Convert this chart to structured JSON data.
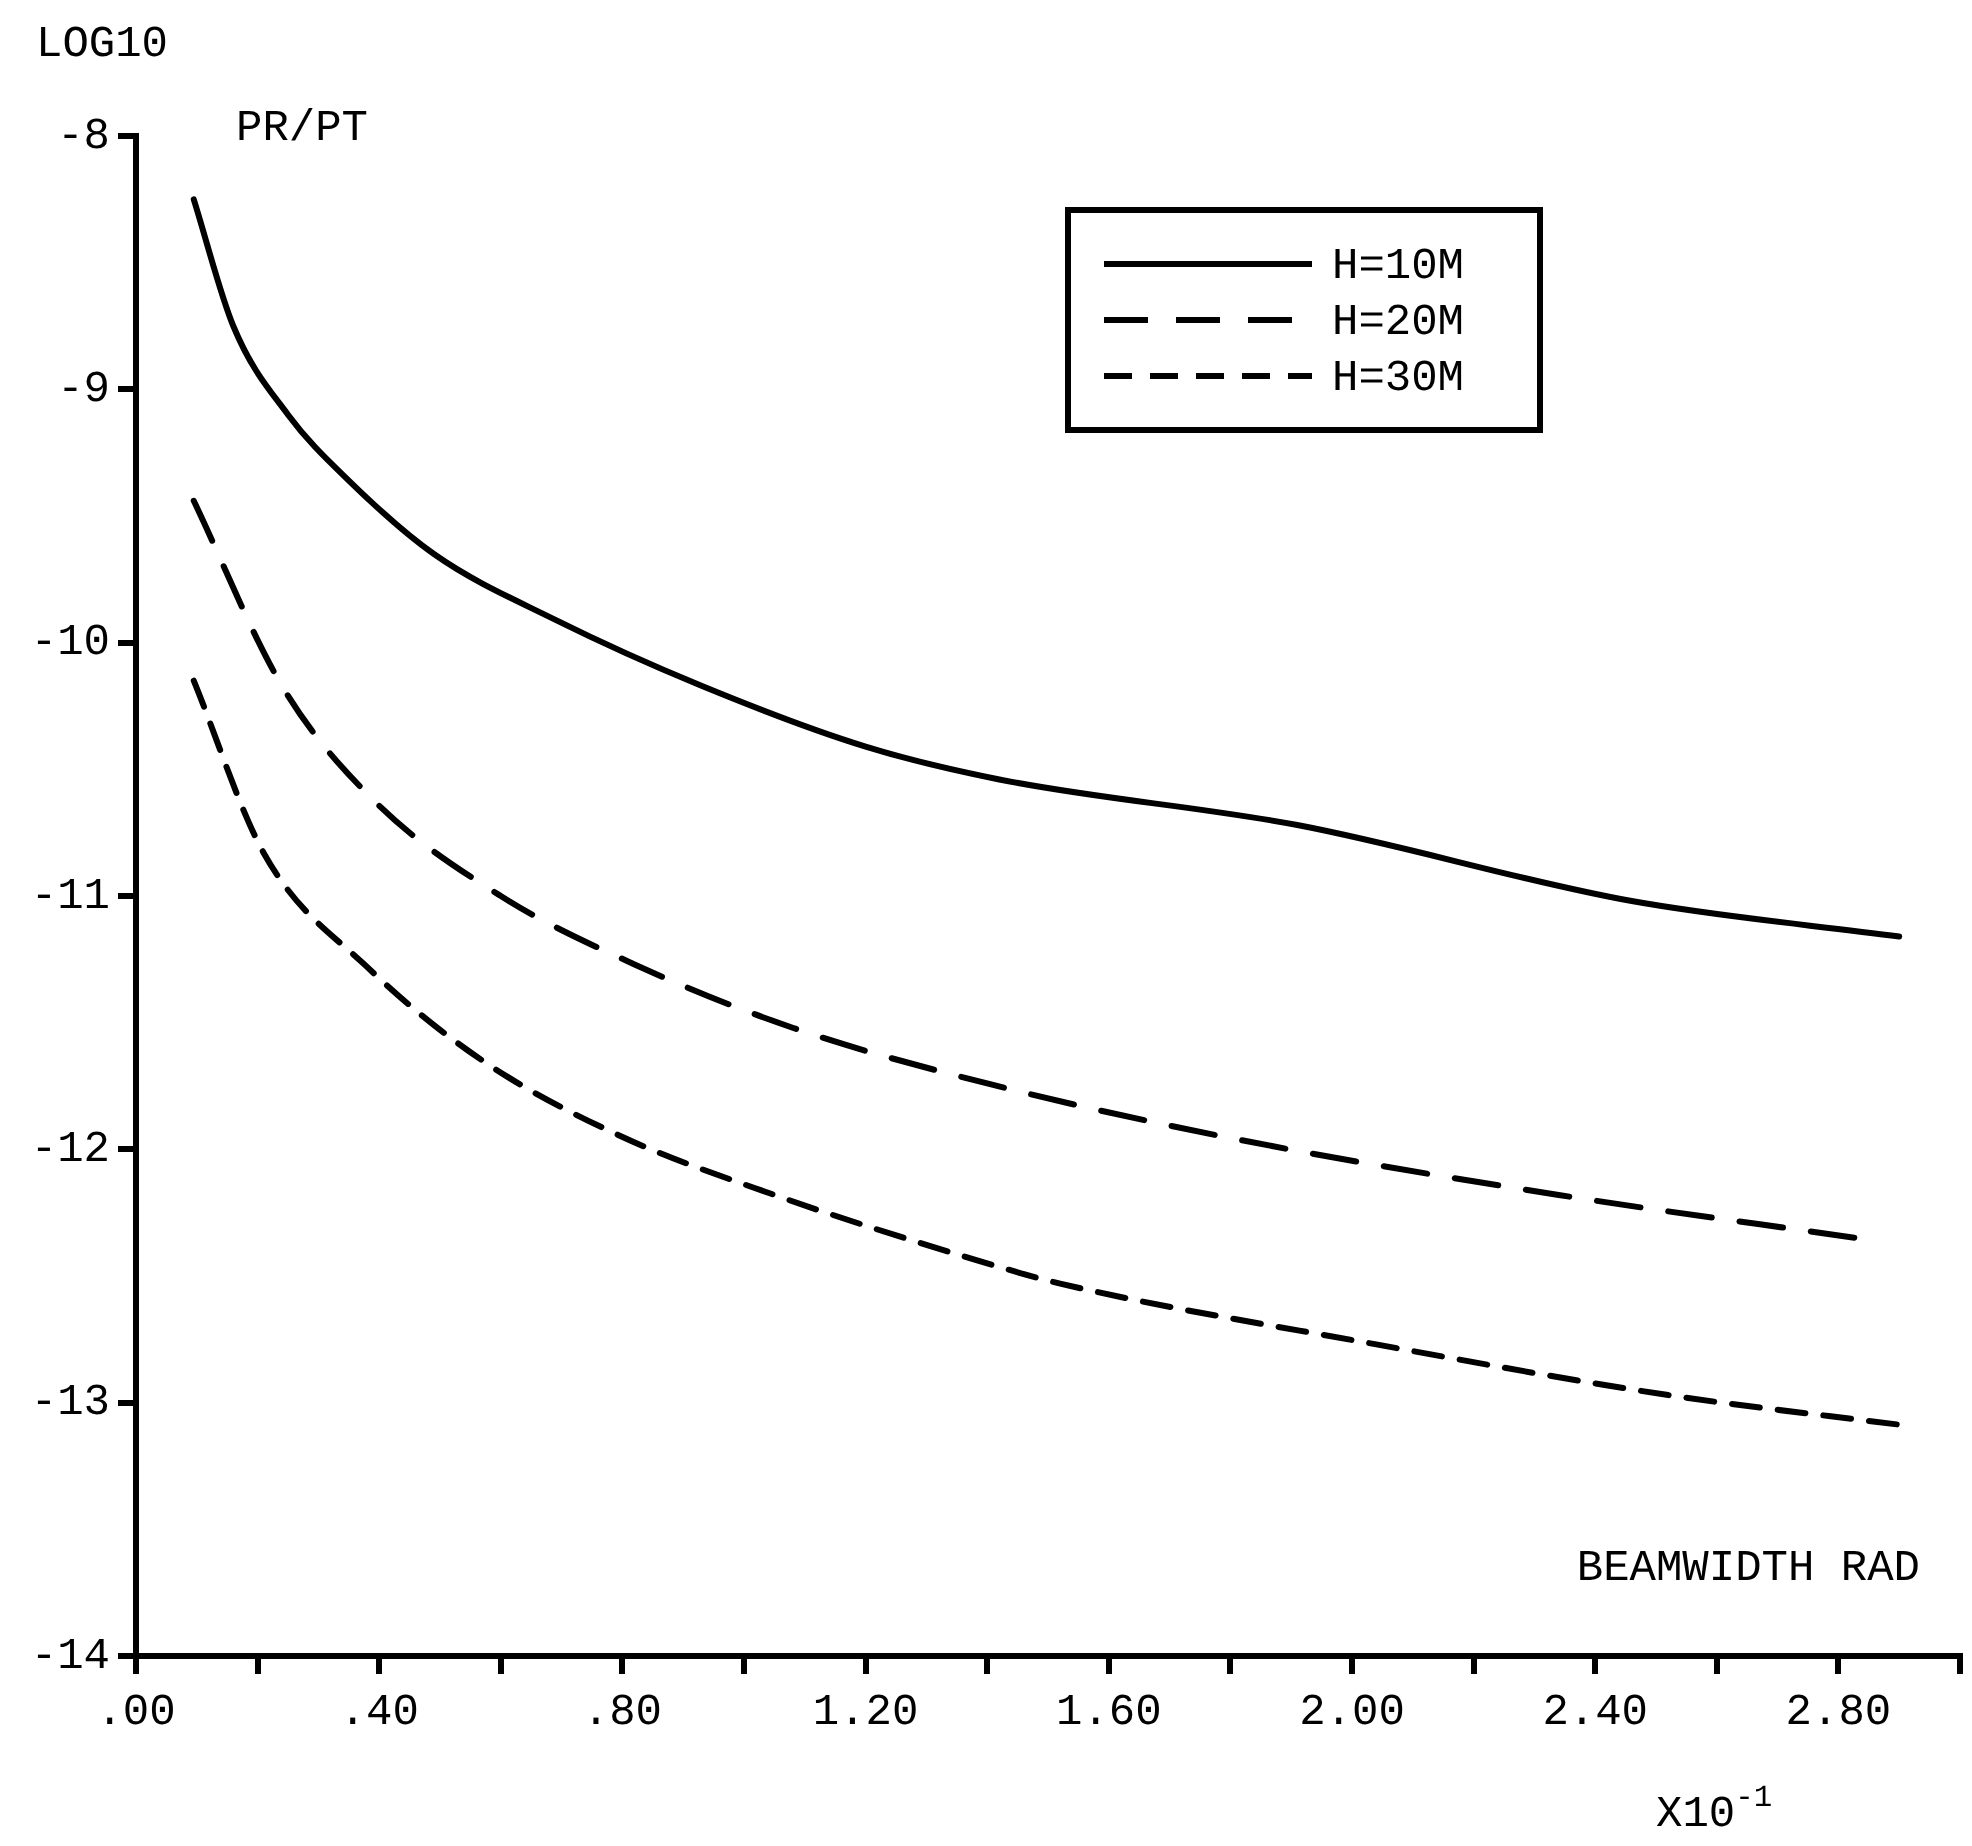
{
  "chart_data": {
    "type": "line",
    "ylabel": "LOG10",
    "xlabel": "BEAMWIDTH RAD",
    "annotations": [
      "PR/PT",
      "X10$^{-1}$"
    ],
    "xlim": [
      0,
      3.0
    ],
    "xticks": [
      {
        "value": 0,
        "label": ".00"
      },
      {
        "value": 0.2,
        "label": null
      },
      {
        "value": 0.4,
        "label": ".40"
      },
      {
        "value": 0.6,
        "label": null
      },
      {
        "value": 0.8,
        "label": ".80"
      },
      {
        "value": 1.0,
        "label": null
      },
      {
        "value": 1.2,
        "label": "1.20"
      },
      {
        "value": 1.4,
        "label": null
      },
      {
        "value": 1.6,
        "label": "1.60"
      },
      {
        "value": 1.8,
        "label": null
      },
      {
        "value": 2.0,
        "label": "2.00"
      },
      {
        "value": 2.2,
        "label": null
      },
      {
        "value": 2.4,
        "label": "2.40"
      },
      {
        "value": 2.6,
        "label": null
      },
      {
        "value": 2.8,
        "label": "2.80"
      },
      {
        "value": 3.0,
        "label": null
      }
    ],
    "ylim": [
      -14,
      -8
    ],
    "yticks": [
      -14,
      -13,
      -12,
      -11,
      -10,
      -9,
      -8
    ],
    "grid": false,
    "legend": "top right",
    "marker": "none",
    "series": [
      {
        "name": "H=10M",
        "color": "#000000",
        "line_style": "solid",
        "x": [
          0.095,
          0.16,
          0.25,
          0.35,
          0.49,
          0.69,
          0.93,
          1.2,
          1.42,
          1.91,
          2.46,
          2.9
        ],
        "values": [
          -8.25,
          -8.75,
          -9.1,
          -9.36,
          -9.65,
          -9.91,
          -10.17,
          -10.41,
          -10.54,
          -10.72,
          -11.02,
          -11.16
        ]
      },
      {
        "name": "H=20M",
        "color": "#000000",
        "line_style": "dashed",
        "x": [
          0.095,
          0.24,
          0.39,
          0.6,
          0.82,
          1.08,
          1.4,
          1.81,
          2.34,
          2.83
        ],
        "values": [
          -9.44,
          -10.17,
          -10.62,
          -11.0,
          -11.27,
          -11.52,
          -11.74,
          -11.96,
          -12.18,
          -12.35
        ]
      },
      {
        "name": "H=30M",
        "color": "#000000",
        "line_style": "dashed",
        "x": [
          0.095,
          0.21,
          0.38,
          0.57,
          0.79,
          1.05,
          1.4,
          1.52,
          2.04,
          2.52,
          2.91
        ],
        "values": [
          -10.15,
          -10.83,
          -11.28,
          -11.65,
          -11.94,
          -12.18,
          -12.45,
          -12.53,
          -12.77,
          -12.97,
          -13.09
        ]
      }
    ]
  }
}
